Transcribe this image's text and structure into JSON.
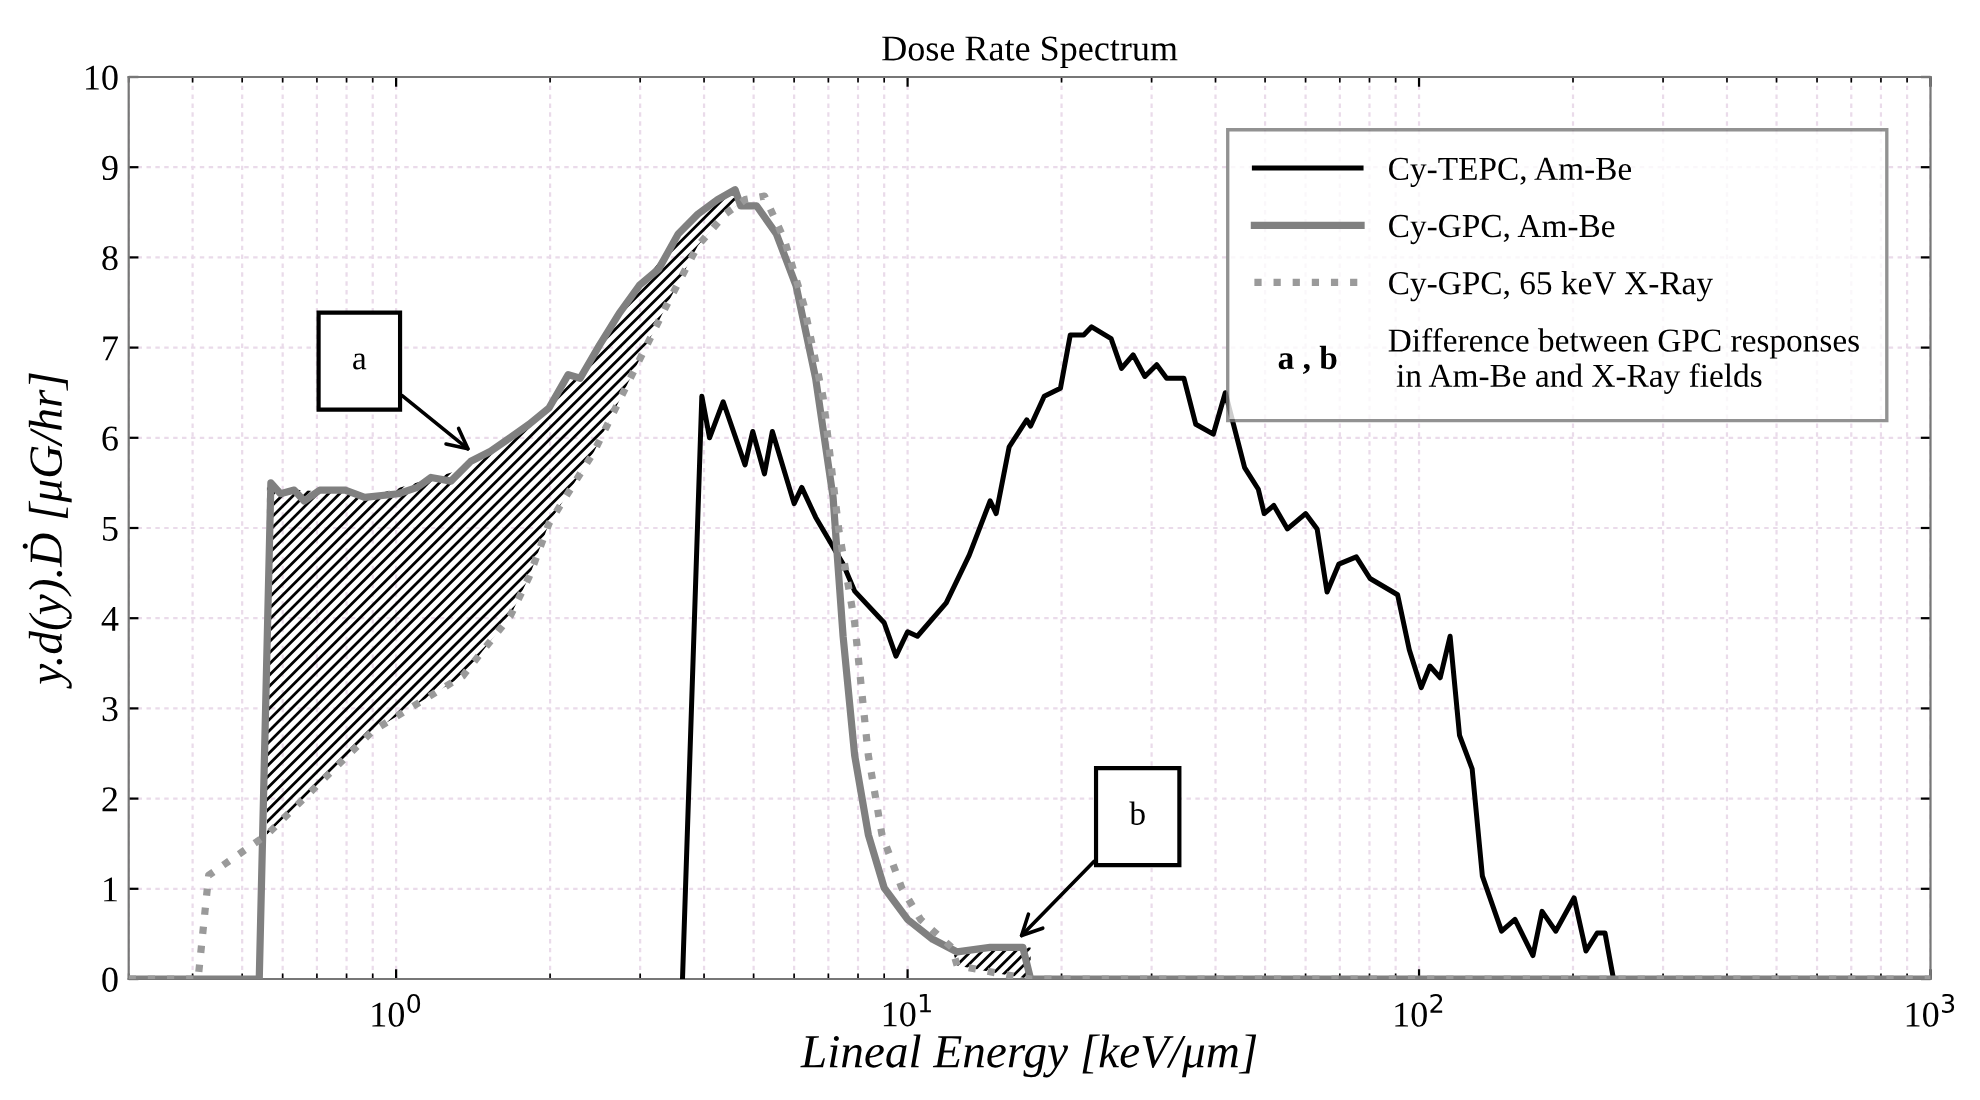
{
  "chart_data": {
    "type": "line",
    "title": "Dose Rate Spectrum",
    "xlabel": "Lineal Energy [keV/μm]",
    "ylabel": "y.d(y).Ḋ [μG/hr]",
    "log": "x",
    "xlim": [
      0.3,
      1000
    ],
    "xticks": [
      {
        "value": 1,
        "label": "10$^{0}$"
      },
      {
        "value": 10,
        "label": "10$^{1}$"
      },
      {
        "value": 100,
        "label": "10$^{2}$"
      },
      {
        "value": 1000,
        "label": "10$^{3}$"
      }
    ],
    "ylim": [
      0,
      10
    ],
    "yticks": [
      0,
      1,
      2,
      3,
      4,
      5,
      6,
      7,
      8,
      9,
      10
    ],
    "grid": true,
    "legend": "top right",
    "series": [
      {
        "name": "Cy-TEPC, Am-Be",
        "color": "#000000",
        "line_style": "solid",
        "x": [
          3.63,
          3.96,
          4.1,
          4.36,
          4.81,
          4.98,
          5.25,
          5.44,
          6.0,
          6.21,
          6.61,
          7.48,
          7.88,
          9.0,
          9.49,
          10.0,
          10.45,
          11.9,
          13.2,
          14.5,
          14.9,
          15.8,
          17.1,
          17.4,
          18.5,
          19.9,
          20.8,
          22.1,
          22.9,
          25.0,
          26.2,
          27.6,
          29.1,
          30.7,
          32.1,
          34.7,
          36.6,
          39.6,
          41.8,
          45.6,
          48.5,
          49.8,
          52.0,
          55.3,
          60.0,
          63.2,
          66.1,
          69.7,
          75.4,
          80.2,
          90.8,
          95.7,
          101,
          105,
          110,
          115,
          120,
          127,
          133,
          145,
          154,
          167,
          174,
          185,
          201,
          212,
          223,
          231,
          240
        ],
        "values": [
          0,
          6.46,
          6.0,
          6.4,
          5.7,
          6.07,
          5.6,
          6.07,
          5.27,
          5.45,
          5.12,
          4.6,
          4.3,
          3.95,
          3.58,
          3.85,
          3.8,
          4.17,
          4.7,
          5.3,
          5.16,
          5.9,
          6.2,
          6.13,
          6.46,
          6.55,
          7.14,
          7.14,
          7.23,
          7.1,
          6.77,
          6.92,
          6.68,
          6.81,
          6.66,
          6.66,
          6.15,
          6.04,
          6.5,
          5.67,
          5.43,
          5.16,
          5.25,
          4.99,
          5.16,
          4.99,
          4.29,
          4.6,
          4.68,
          4.44,
          4.26,
          3.65,
          3.23,
          3.47,
          3.34,
          3.8,
          2.7,
          2.33,
          1.14,
          0.53,
          0.66,
          0.26,
          0.75,
          0.53,
          0.9,
          0.31,
          0.51,
          0.51,
          0
        ]
      },
      {
        "name": "Cy-GPC, Am-Be",
        "color": "#808080",
        "line_style": "solid",
        "x": [
          0.3,
          0.54,
          0.569,
          0.594,
          0.632,
          0.661,
          0.709,
          0.795,
          0.868,
          1.01,
          1.1,
          1.17,
          1.28,
          1.4,
          1.53,
          1.67,
          1.82,
          1.99,
          2.17,
          2.29,
          2.5,
          2.73,
          2.99,
          3.26,
          3.56,
          3.89,
          4.25,
          4.6,
          4.72,
          5.07,
          5.54,
          6.05,
          6.61,
          7.15,
          7.48,
          7.88,
          8.38,
          9.0,
          10.0,
          11.2,
          12.5,
          14.5,
          16.8,
          17.4,
          1000
        ],
        "values": [
          0,
          0,
          5.5,
          5.38,
          5.42,
          5.3,
          5.42,
          5.42,
          5.34,
          5.38,
          5.45,
          5.56,
          5.52,
          5.74,
          5.85,
          6.0,
          6.15,
          6.33,
          6.7,
          6.66,
          7.03,
          7.38,
          7.69,
          7.87,
          8.26,
          8.48,
          8.64,
          8.75,
          8.57,
          8.57,
          8.26,
          7.69,
          6.66,
          5.34,
          3.8,
          2.48,
          1.6,
          1.01,
          0.66,
          0.44,
          0.3,
          0.35,
          0.35,
          0,
          0
        ]
      },
      {
        "name": "Cy-GPC, 65 keV X-Ray",
        "color": "#9a9a9a",
        "line_style": "dotted",
        "x": [
          0.3,
          0.41,
          0.43,
          0.559,
          0.9,
          1.35,
          1.67,
          1.82,
          1.99,
          2.44,
          2.91,
          3.38,
          3.89,
          4.4,
          4.81,
          5.25,
          5.74,
          6.27,
          6.84,
          7.34,
          7.88,
          8.38,
          8.91,
          9.74,
          10.6,
          12.2,
          12.5,
          15.8,
          17.4,
          1000
        ],
        "values": [
          0,
          0,
          1.15,
          1.6,
          2.75,
          3.36,
          4.02,
          4.46,
          5.05,
          5.85,
          6.73,
          7.47,
          8.13,
          8.48,
          8.64,
          8.68,
          8.2,
          7.47,
          6.44,
          4.97,
          3.95,
          2.48,
          1.6,
          1.01,
          0.66,
          0.35,
          0.15,
          0.04,
          0,
          0
        ],
        "lower": [
          null,
          null,
          null,
          1.6,
          2.75,
          3.36,
          4.02,
          4.46,
          5.05,
          5.85,
          6.73,
          7.47,
          8.13,
          8.48,
          8.64,
          null,
          null,
          null,
          null,
          null,
          null,
          null,
          null,
          null,
          null,
          0.35,
          0.15,
          0.04,
          0,
          null
        ],
        "upper": [
          null,
          null,
          null,
          5.45,
          5.36,
          5.65,
          6.0,
          6.15,
          6.33,
          6.95,
          7.6,
          8.05,
          8.48,
          8.68,
          8.64,
          null,
          null,
          null,
          null,
          null,
          null,
          null,
          null,
          null,
          null,
          0.35,
          0.26,
          0.35,
          0.35,
          null
        ]
      }
    ],
    "annotations": [
      "a",
      "b",
      "a , b",
      "Difference between GPC responses\n in Am-Be and X-Ray fields"
    ]
  }
}
